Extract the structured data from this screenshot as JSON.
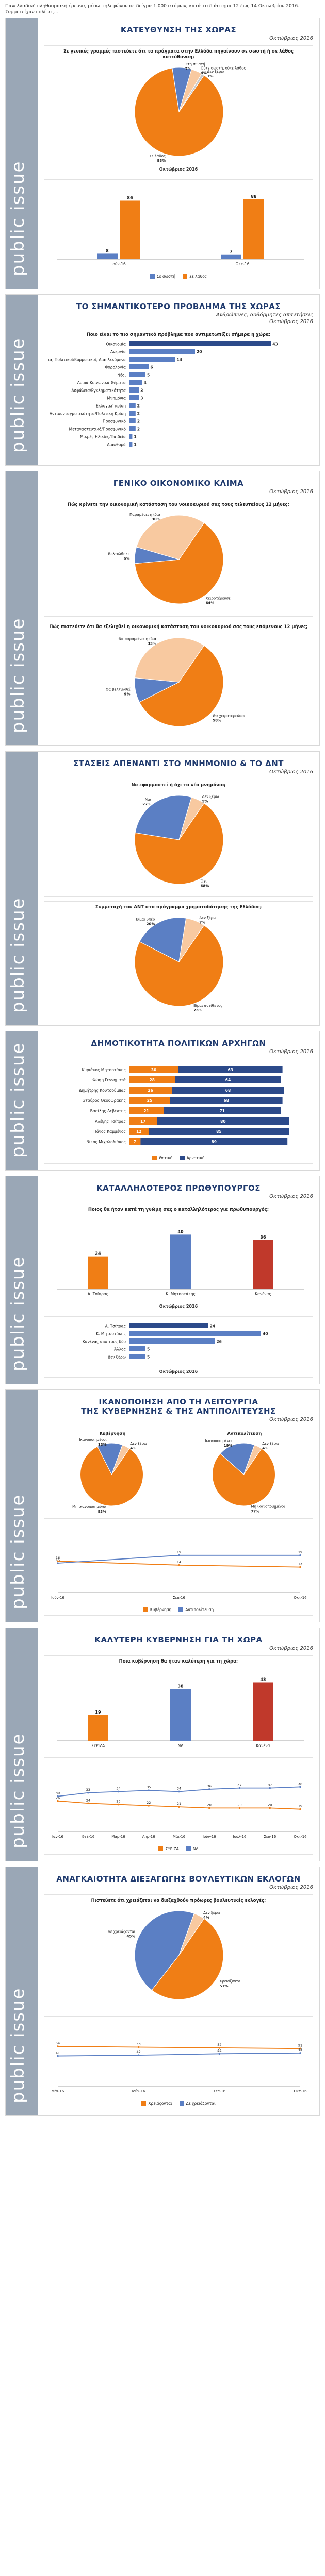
{
  "intro": "Πανελλαδική πληθυσμιακή έρευνα, μέσω τηλεφώνου σε δείγμα 1.000 ατόμων, κατά το διάστημα 12 έως 14 Οκτωβρίου 2016. Συμμετείχαν πολίτες...",
  "watermark": "public issue",
  "colors": {
    "orange": "#f07e15",
    "blue": "#5b7fc4",
    "peach": "#f8c9a0",
    "grey": "#c9c9c9",
    "red": "#c0392b",
    "navy": "#2c4a8a",
    "lightblue": "#8fb4e3"
  },
  "panels": [
    {
      "title": "ΚΑΤΕΥΘΥΝΣΗ ΤΗΣ ΧΩΡΑΣ",
      "subtitle": "Οκτώβριος 2016",
      "cards": [
        {
          "question": "Σε γενικές γραμμές πιστεύετε ότι τα πράγματα στην Ελλάδα πηγαίνουν σε σωστή ή σε λάθος κατεύθυνση;",
          "caption": "Οκτώβριος 2016",
          "chart_data": {
            "type": "pie",
            "labels": [
              "Σε λάθος",
              "Στη σωστή",
              "Ούτε σωστή, ούτε λάθος",
              "Δεν ξέρω"
            ],
            "values": [
              88,
              7,
              4,
              1
            ]
          }
        },
        {
          "caption": "",
          "chart_data": {
            "type": "bar",
            "categories": [
              "Ιούν-16",
              "Οκτ-16"
            ],
            "series": [
              {
                "name": "Σε σωστή",
                "values": [
                  8,
                  7
                ]
              },
              {
                "name": "Σε λάθος",
                "values": [
                  86,
                  88
                ]
              }
            ],
            "ylim": [
              0,
              100
            ]
          }
        }
      ]
    },
    {
      "title": "ΤΟ ΣΗΜΑΝΤΙΚΟΤΕΡΟ ΠΡΟΒΛΗΜΑ ΤΗΣ ΧΩΡΑΣ",
      "subtitle": "Ανθρώπινες, αυθόρμητες απαντήσεις",
      "subtitle2": "Οκτώβριος 2016",
      "cards": [
        {
          "question": "Ποιο είναι το πιο σημαντικό πρόβλημα που αντιμετωπίζει σήμερα η χώρα;",
          "caption": "",
          "chart_data": {
            "type": "bar",
            "orientation": "horizontal",
            "categories": [
              "Οικονομία",
              "Ανεργία",
              "Κυβερνητική Ανεπάρκεια, Πολιτικοί/Κομματικοί, Διαπλεκόμενα",
              "Φορολογία",
              "Νέοι",
              "Λοιπά Κοινωνικά Θέματα",
              "Ασφάλεια/Εγκληματικότητα",
              "Μνημόνια",
              "Εκλογική κρίση",
              "Αντισυνταγματικότητα/Πολιτική Κρίση",
              "Προσφυγικό",
              "Μεταναστευτικό/Προσφυγικό",
              "Μικρές Ηλικίες/Παιδεία",
              "Διαφθορά"
            ],
            "values": [
              43,
              20,
              14,
              6,
              5,
              4,
              3,
              3,
              2,
              2,
              2,
              2,
              1,
              1
            ],
            "xlim": [
              0,
              50
            ]
          }
        }
      ]
    },
    {
      "title": "ΓΕΝΙΚΟ ΟΙΚΟΝΟΜΙΚΟ ΚΛΙΜΑ",
      "subtitle": "Οκτώβριος 2016",
      "cards": [
        {
          "question": "Πώς κρίνετε την οικονομική κατάσταση του νοικοκυριού σας τους τελευταίους 12 μήνες;",
          "caption": "",
          "chart_data": {
            "type": "pie",
            "labels": [
              "Χειροτέρευσε",
              "Βελτιώθηκε",
              "Παραμένει η ίδια"
            ],
            "values": [
              64,
              6,
              30
            ]
          }
        },
        {
          "question": "Πώς πιστεύετε ότι θα εξελιχθεί η οικονομική κατάσταση του νοικοκυριού σας τους επόμενους 12 μήνες;",
          "caption": "",
          "chart_data": {
            "type": "pie",
            "labels": [
              "Θα χειροτερεύσει",
              "Θα βελτιωθεί",
              "Θα παραμείνει η ίδια"
            ],
            "values": [
              58,
              9,
              33
            ]
          }
        }
      ]
    },
    {
      "title": "ΣΤΑΣΕΙΣ ΑΠΕΝΑΝΤΙ ΣΤΟ ΜΝΗΜΟΝΙΟ & ΤΟ ΔΝΤ",
      "subtitle": "Οκτώβριος 2016",
      "cards": [
        {
          "question": "Να εφαρμοστεί ή όχι το νέο μνημόνιο;",
          "caption": "",
          "chart_data": {
            "type": "pie",
            "labels": [
              "Όχι",
              "Ναι",
              "Δεν ξέρω"
            ],
            "values": [
              68,
              27,
              5
            ]
          }
        },
        {
          "question": "Συμμετοχή του ΔΝΤ στο πρόγραμμα χρηματοδότησης της Ελλάδας;",
          "caption": "",
          "chart_data": {
            "type": "pie",
            "labels": [
              "Είμαι αντίθετος",
              "Είμαι υπέρ",
              "Δεν ξέρω"
            ],
            "values": [
              73,
              20,
              7
            ]
          }
        }
      ]
    },
    {
      "title": "ΔΗΜΟΤΙΚΟΤΗΤΑ ΠΟΛΙΤΙΚΩΝ ΑΡΧΗΓΩΝ",
      "subtitle": "Οκτώβριος 2016",
      "cards": [
        {
          "question": "",
          "caption": "",
          "chart_data": {
            "type": "bar",
            "orientation": "horizontal",
            "stacked": true,
            "categories": [
              "Κυριάκος Μητσοτάκης",
              "Φώφη Γεννηματά",
              "Δημήτρης Κουτσούμπας",
              "Σταύρος Θεοδωράκης",
              "Βασίλης Λεβέντης",
              "Αλέξης Τσίπρας",
              "Πάνος Καμμένος",
              "Νίκος Μιχαλολιάκος"
            ],
            "series": [
              {
                "name": "Θετική",
                "values": [
                  30,
                  28,
                  26,
                  25,
                  21,
                  17,
                  12,
                  7
                ]
              },
              {
                "name": "Αρνητική",
                "values": [
                  63,
                  64,
                  68,
                  68,
                  71,
                  80,
                  85,
                  89
                ]
              }
            ]
          }
        }
      ]
    },
    {
      "title": "ΚΑΤΑΛΛΗΛΟΤΕΡΟΣ ΠΡΩΘΥΠΟΥΡΓΟΣ",
      "subtitle": "Οκτώβριος 2016",
      "cards": [
        {
          "question": "Ποιος θα ήταν κατά τη γνώμη σας ο καταλληλότερος για πρωθυπουργός;",
          "caption": "Οκτώβριος 2016",
          "chart_data": {
            "type": "bar",
            "categories": [
              "Α. Τσίπρας",
              "Κ. Μητσοτάκης",
              "Κανένας"
            ],
            "values": [
              24,
              40,
              36
            ],
            "ylim": [
              0,
              50
            ]
          }
        },
        {
          "question": "",
          "caption": "Οκτώβριος 2016",
          "chart_data": {
            "type": "bar",
            "orientation": "horizontal",
            "categories": [
              "Α. Τσίπρας",
              "Κ. Μητσοτάκης",
              "Κανένας από τους δύο",
              "Άλλος",
              "Δεν ξέρω"
            ],
            "values": [
              24,
              40,
              26,
              5,
              5
            ],
            "xlim": [
              0,
              50
            ]
          }
        }
      ]
    },
    {
      "title": "ΙΚΑΝΟΠΟΙΗΣΗ ΑΠΟ ΤΗ ΛΕΙΤΟΥΡΓΙΑ\nΤΗΣ ΚΥΒΕΡΝΗΣΗΣ & ΤΗΣ ΑΝΤΙΠΟΛΙΤΕΥΣΗΣ",
      "subtitle": "Οκτώβριος 2016",
      "cards": [
        {
          "question": "",
          "caption": "",
          "two_pies": [
            {
              "label": "Κυβέρνηση",
              "chart_data": {
                "type": "pie",
                "labels": [
                  "Μη ικανοποιημένοι",
                  "Ικανοποιημένοι",
                  "Δεν ξέρω"
                ],
                "values": [
                  83,
                  13,
                  4
                ]
              }
            },
            {
              "label": "Αντιπολίτευση",
              "chart_data": {
                "type": "pie",
                "labels": [
                  "Μη ικανοποιημένοι",
                  "Ικανοποιημένοι",
                  "Δεν ξέρω"
                ],
                "values": [
                  77,
                  19,
                  4
                ]
              }
            }
          ]
        },
        {
          "question": "",
          "caption": "",
          "chart_data": {
            "type": "line",
            "x": [
              "Ιούν-16",
              "Σεπ-16",
              "Οκτ-16"
            ],
            "series": [
              {
                "name": "Κυβέρνηση",
                "values": [
                  16,
                  14,
                  13
                ]
              },
              {
                "name": "Αντιπολίτευση",
                "values": [
                  15,
                  19,
                  19
                ]
              }
            ],
            "ylim": [
              0,
              30
            ]
          }
        }
      ]
    },
    {
      "title": "ΚΑΛΥΤΕΡΗ ΚΥΒΕΡΝΗΣΗ ΓΙΑ ΤΗ ΧΩΡΑ",
      "subtitle": "Οκτώβριος 2016",
      "cards": [
        {
          "question": "Ποια κυβέρνηση θα ήταν καλύτερη για τη χώρα;",
          "caption": "",
          "chart_data": {
            "type": "bar",
            "categories": [
              "ΣΥΡΙΖΑ",
              "ΝΔ",
              "Κανένα"
            ],
            "values": [
              19,
              38,
              43
            ],
            "ylim": [
              0,
              50
            ]
          }
        },
        {
          "question": "",
          "caption": "",
          "chart_data": {
            "type": "line",
            "x": [
              "Ιαν-16",
              "Φεβ-16",
              "Μαρ-16",
              "Απρ-16",
              "Μάι-16",
              "Ιούν-16",
              "Ιούλ-16",
              "Σεπ-16",
              "Οκτ-16"
            ],
            "series": [
              {
                "name": "ΣΥΡΙΖΑ",
                "values": [
                  26,
                  24,
                  23,
                  22,
                  21,
                  20,
                  20,
                  20,
                  19
                ]
              },
              {
                "name": "ΝΔ",
                "values": [
                  30,
                  33,
                  34,
                  35,
                  34,
                  36,
                  37,
                  37,
                  38
                ]
              }
            ],
            "ylim": [
              0,
              50
            ]
          }
        }
      ]
    },
    {
      "title": "ΑΝΑΓΚΑΙΟΤΗΤΑ ΔΙΕΞΑΓΩΓΗΣ ΒΟΥΛΕΥΤΙΚΩΝ ΕΚΛΟΓΩΝ",
      "subtitle": "Οκτώβριος 2016",
      "cards": [
        {
          "question": "Πιστεύετε ότι χρειάζεται να διεξαχθούν πρόωρες βουλευτικές εκλογές;",
          "caption": "",
          "chart_data": {
            "type": "pie",
            "labels": [
              "Χρειάζονται",
              "Δε χρειάζονται",
              "Δεν ξέρω"
            ],
            "values": [
              51,
              45,
              4
            ]
          }
        },
        {
          "question": "",
          "caption": "",
          "chart_data": {
            "type": "line",
            "x": [
              "Μάι-16",
              "Ιούν-16",
              "Σεπ-16",
              "Οκτ-16"
            ],
            "series": [
              {
                "name": "Χρειάζονται",
                "values": [
                  54,
                  53,
                  52,
                  51
                ]
              },
              {
                "name": "Δε χρειάζονται",
                "values": [
                  41,
                  42,
                  44,
                  45
                ]
              }
            ],
            "ylim": [
              0,
              80
            ]
          }
        }
      ]
    }
  ]
}
